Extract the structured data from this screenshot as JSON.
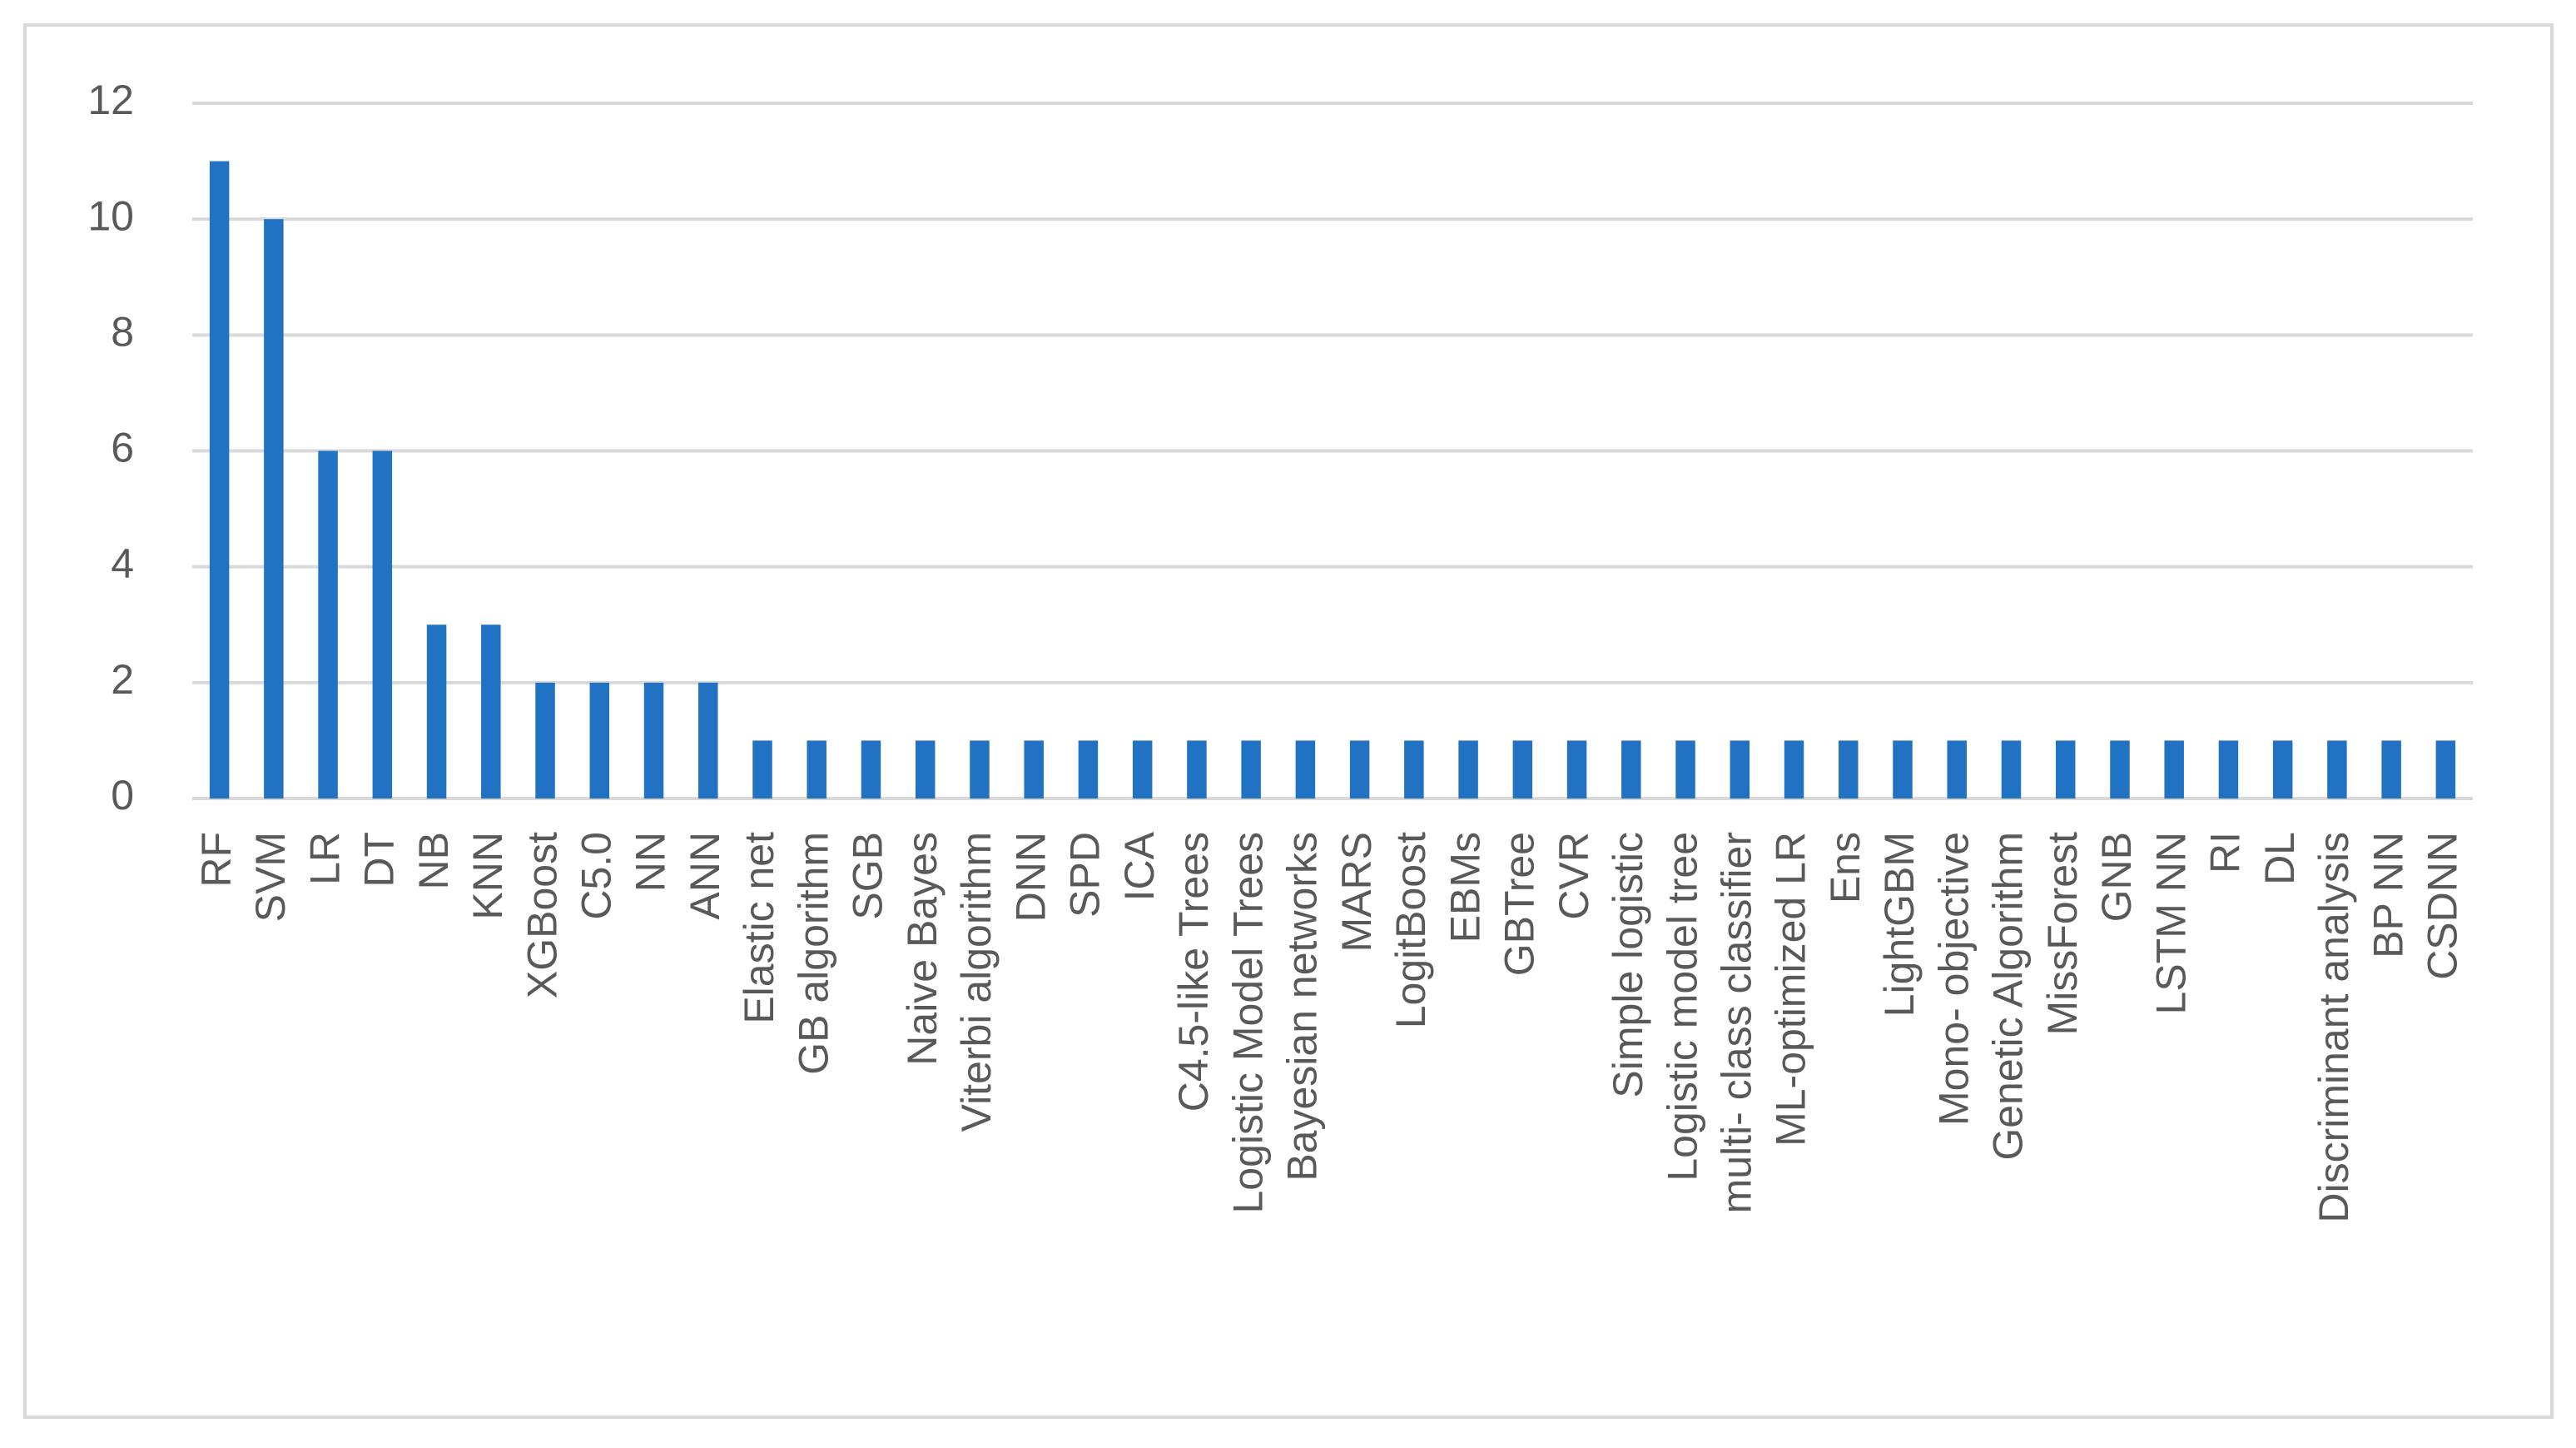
{
  "chart_data": {
    "type": "bar",
    "categories": [
      "RF",
      "SVM",
      "LR",
      "DT",
      "NB",
      "KNN",
      "XGBoost",
      "C5.0",
      "NN",
      "ANN",
      "Elastic net",
      "GB algorithm",
      "SGB",
      "Naive Bayes",
      "Viterbi algorithm",
      "DNN",
      "SPD",
      "ICA",
      "C4.5-like Trees",
      "Logistic Model Trees",
      "Bayesian networks",
      "MARS",
      "LogitBoost",
      "EBMs",
      "GBTree",
      "CVR",
      "Simple logistic",
      "Logistic model tree",
      "multi- class classifier",
      "ML-optimized LR",
      "Ens",
      "LightGBM",
      "Mono- objective",
      "Genetic Algorithm",
      "MissForest",
      "GNB",
      "LSTM NN",
      "RI",
      "DL",
      "Discriminant analysis",
      "BP NN",
      "CSDNN"
    ],
    "values": [
      11,
      10,
      6,
      6,
      3,
      3,
      2,
      2,
      2,
      2,
      1,
      1,
      1,
      1,
      1,
      1,
      1,
      1,
      1,
      1,
      1,
      1,
      1,
      1,
      1,
      1,
      1,
      1,
      1,
      1,
      1,
      1,
      1,
      1,
      1,
      1,
      1,
      1,
      1,
      1,
      1,
      1
    ],
    "color": "#2272c3",
    "ylim": [
      0,
      12
    ],
    "yticks": [
      0,
      2,
      4,
      6,
      8,
      10,
      12
    ],
    "grid": true
  }
}
